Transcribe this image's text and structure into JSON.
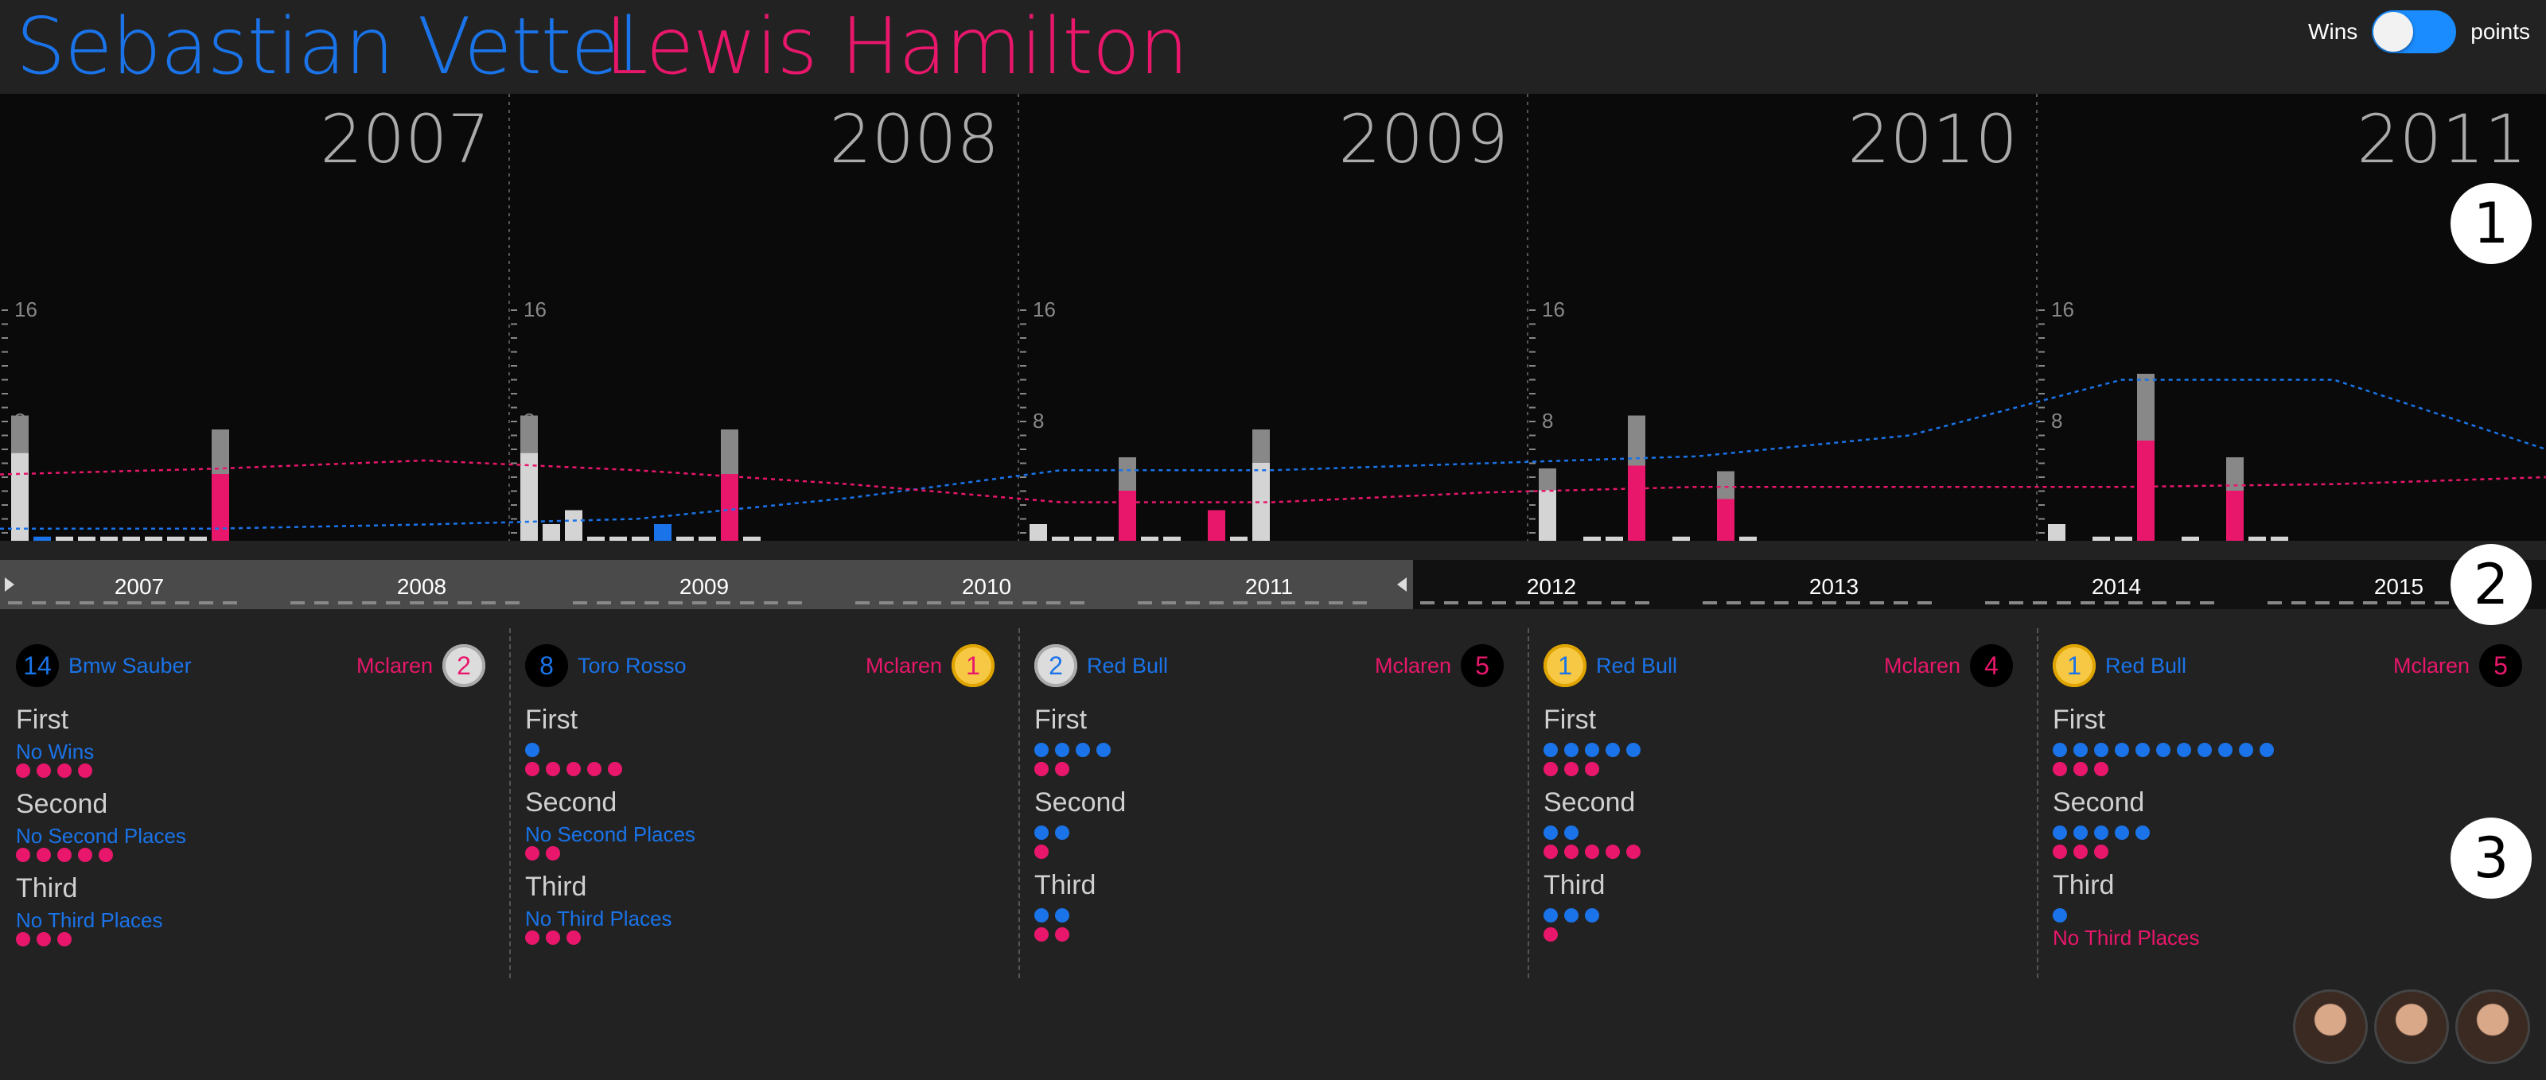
{
  "header": {
    "driver_a": "Sebastian Vettel",
    "driver_b": "Lewis Hamilton",
    "toggle_left": "Wins",
    "toggle_right": "points"
  },
  "colors": {
    "driver_a": "#1a73e8",
    "driver_b": "#e8176b"
  },
  "callouts": [
    "1",
    "2",
    "3"
  ],
  "chart_data": {
    "type": "bar",
    "yaxis_labels": [
      "16",
      "8"
    ],
    "ylim": [
      0,
      20
    ],
    "years": [
      {
        "label": "2007",
        "bars": [
          [
            "w",
            9
          ],
          [
            "a",
            0.3
          ],
          [
            "w",
            0.3
          ],
          [
            "w",
            0.3
          ],
          [
            "w",
            0.3
          ],
          [
            "w",
            0.3
          ],
          [
            "w",
            0.3
          ],
          [
            "w",
            0.3
          ],
          [
            "w",
            0.3
          ],
          [
            "x",
            8
          ],
          [
            "w",
            0
          ]
        ]
      },
      {
        "label": "2008",
        "bars": [
          [
            "w",
            9
          ],
          [
            "w",
            1.2
          ],
          [
            "w",
            2.2
          ],
          [
            "w",
            0.3
          ],
          [
            "w",
            0.3
          ],
          [
            "w",
            0.3
          ],
          [
            "a",
            1.2
          ],
          [
            "w",
            0.3
          ],
          [
            "w",
            0.3
          ],
          [
            "x",
            8
          ],
          [
            "w",
            0.3
          ]
        ]
      },
      {
        "label": "2009",
        "bars": [
          [
            "w",
            1.2
          ],
          [
            "w",
            0.3
          ],
          [
            "w",
            0.3
          ],
          [
            "w",
            0.3
          ],
          [
            "x",
            6
          ],
          [
            "w",
            0.3
          ],
          [
            "w",
            0.3
          ],
          [
            "w",
            0
          ],
          [
            "y",
            2.2
          ],
          [
            "w",
            0.3
          ],
          [
            "w",
            8
          ]
        ]
      },
      {
        "label": "2010",
        "bars": [
          [
            "w",
            5.2
          ],
          [
            "w",
            0
          ],
          [
            "w",
            0.3
          ],
          [
            "w",
            0.3
          ],
          [
            "x",
            9
          ],
          [
            "w",
            0
          ],
          [
            "w",
            0.3
          ],
          [
            "w",
            0
          ],
          [
            "x",
            5
          ],
          [
            "w",
            0.3
          ],
          [
            "w",
            0
          ]
        ]
      },
      {
        "label": "2011",
        "bars": [
          [
            "w",
            1.2
          ],
          [
            "w",
            0
          ],
          [
            "w",
            0.3
          ],
          [
            "w",
            0.3
          ],
          [
            "x",
            12
          ],
          [
            "w",
            0
          ],
          [
            "w",
            0.3
          ],
          [
            "w",
            0
          ],
          [
            "x",
            6
          ],
          [
            "w",
            0.3
          ],
          [
            "w",
            0.3
          ]
        ]
      }
    ],
    "trend_a": [
      0.3,
      0.3,
      0.6,
      1,
      2.5,
      4.5,
      4.5,
      5,
      5.5,
      7,
      11,
      11,
      6
    ],
    "trend_b": [
      4.2,
      4.6,
      5.2,
      4.5,
      3.5,
      2.2,
      2.2,
      2.9,
      3.3,
      3.3,
      3.3,
      3.5,
      4
    ]
  },
  "timeline": {
    "years": [
      "2007",
      "2008",
      "2009",
      "2010",
      "2011",
      "2012",
      "2013",
      "2014",
      "2015"
    ]
  },
  "details": [
    {
      "pos_a": "14",
      "team_a": "Bmw Sauber",
      "team_b": "Mclaren",
      "pos_b": "2",
      "pos_b_style": "silver",
      "pos_a_style": "",
      "first_title": "First",
      "first_a_none": "No Wins",
      "first_a": 0,
      "first_b": 4,
      "second_title": "Second",
      "second_a_none": "No Second Places",
      "second_a": 0,
      "second_b": 5,
      "third_title": "Third",
      "third_a_none": "No Third Places",
      "third_a": 0,
      "third_b": 3
    },
    {
      "pos_a": "8",
      "team_a": "Toro Rosso",
      "team_b": "Mclaren",
      "pos_b": "1",
      "pos_b_style": "gold",
      "pos_a_style": "",
      "first_title": "First",
      "first_a": 1,
      "first_b": 5,
      "second_title": "Second",
      "second_a_none": "No Second Places",
      "second_a": 0,
      "second_b": 2,
      "third_title": "Third",
      "third_a_none": "No Third Places",
      "third_a": 0,
      "third_b": 3
    },
    {
      "pos_a": "2",
      "team_a": "Red Bull",
      "team_b": "Mclaren",
      "pos_b": "5",
      "pos_b_style": "",
      "pos_a_style": "silver",
      "first_title": "First",
      "first_a": 4,
      "first_b": 2,
      "second_title": "Second",
      "second_a": 2,
      "second_b": 1,
      "third_title": "Third",
      "third_a": 2,
      "third_b": 2
    },
    {
      "pos_a": "1",
      "team_a": "Red Bull",
      "team_b": "Mclaren",
      "pos_b": "4",
      "pos_b_style": "",
      "pos_a_style": "gold",
      "first_title": "First",
      "first_a": 5,
      "first_b": 3,
      "second_title": "Second",
      "second_a": 2,
      "second_b": 5,
      "third_title": "Third",
      "third_a": 3,
      "third_b": 1
    },
    {
      "pos_a": "1",
      "team_a": "Red Bull",
      "team_b": "Mclaren",
      "pos_b": "5",
      "pos_b_style": "",
      "pos_a_style": "gold",
      "first_title": "First",
      "first_a": 11,
      "first_b": 3,
      "second_title": "Second",
      "second_a": 5,
      "second_b": 3,
      "third_title": "Third",
      "third_a": 1,
      "third_b": 0,
      "third_b_none": "No Third Places"
    }
  ]
}
